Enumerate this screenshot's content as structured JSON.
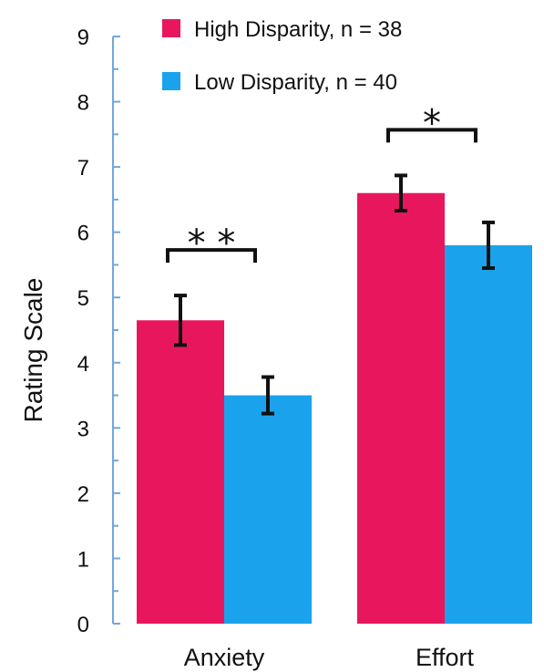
{
  "chart_data": {
    "type": "bar",
    "title": "",
    "xlabel": "",
    "ylabel": "Rating Scale",
    "ylim": [
      0,
      9
    ],
    "yticks": [
      0,
      1,
      2,
      3,
      4,
      5,
      6,
      7,
      8,
      9
    ],
    "grid": false,
    "legend_position": "top",
    "categories": [
      "Anxiety",
      "Effort"
    ],
    "series": [
      {
        "name": "High Disparity, n = 38",
        "color": "#e8175d",
        "values": [
          4.65,
          6.6
        ],
        "error": [
          0.38,
          0.27
        ]
      },
      {
        "name": "Low Disparity, n = 40",
        "color": "#1aa3ec",
        "values": [
          3.5,
          5.8
        ],
        "error": [
          0.28,
          0.35
        ]
      }
    ],
    "annotations": [
      {
        "category": "Anxiety",
        "text": "* *"
      },
      {
        "category": "Effort",
        "text": "*"
      }
    ],
    "axis_color": "#6fa8dc"
  }
}
